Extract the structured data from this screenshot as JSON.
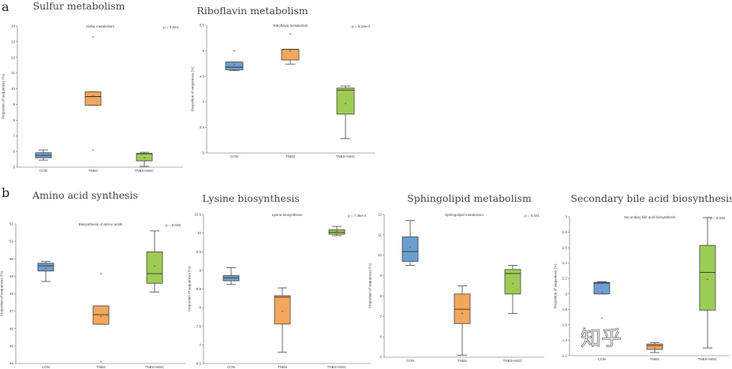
{
  "panel_labels": {
    "a": "a",
    "b": "b"
  },
  "watermark": "知乎",
  "colors": {
    "CON": "#6b9fcf",
    "TNBS": "#f2a75c",
    "TNBS+MSC": "#9dcc55"
  },
  "chart_data": [
    {
      "type": "box",
      "section": "a",
      "title": "Sulfur metabolism",
      "inner_title": "Sulfur metabolism",
      "pvalue": "p = 0.024",
      "ylabel": "Proportion of sequences (%)",
      "categories": [
        "CON",
        "TNBS",
        "TNBS+MSC"
      ],
      "ylim": [
        5,
        14
      ],
      "yticks": [
        5,
        6,
        7,
        8,
        9,
        10,
        11,
        12,
        13,
        14
      ],
      "boxes": [
        {
          "low": 5.45,
          "q1": 5.6,
          "median": 5.75,
          "q3": 5.92,
          "high": 6.1,
          "mean": 5.78,
          "outliers": []
        },
        {
          "low": 8.95,
          "q1": 8.95,
          "median": 9.5,
          "q3": 9.8,
          "high": 9.8,
          "mean": 9.55,
          "outliers": [
            13.3,
            6.1
          ]
        },
        {
          "low": 5.05,
          "q1": 5.4,
          "median": 5.85,
          "q3": 5.88,
          "high": 5.95,
          "mean": 5.6,
          "outliers": []
        }
      ]
    },
    {
      "type": "box",
      "section": "a",
      "title": "Riboflavin metabolism",
      "inner_title": "Riboflavin metabolism",
      "pvalue": "p = 5.23e-4",
      "ylabel": "Proportion of sequences (%)",
      "categories": [
        "CON",
        "TNBS",
        "TNBS+MSC"
      ],
      "ylim": [
        3.0,
        5.5
      ],
      "yticks": [
        3.0,
        3.5,
        4.0,
        4.5,
        5.0,
        5.5
      ],
      "boxes": [
        {
          "low": 4.61,
          "q1": 4.63,
          "median": 4.68,
          "q3": 4.78,
          "high": 4.78,
          "mean": 4.73,
          "outliers": [
            5.0
          ]
        },
        {
          "low": 4.74,
          "q1": 4.82,
          "median": 5.03,
          "q3": 5.03,
          "high": 5.03,
          "mean": 5.0,
          "outliers": [
            5.33
          ]
        },
        {
          "low": 3.28,
          "q1": 3.76,
          "median": 4.23,
          "q3": 4.27,
          "high": 4.31,
          "mean": 3.97,
          "outliers": []
        }
      ]
    },
    {
      "type": "box",
      "section": "b",
      "title": "Amino acid synthesis",
      "inner_title": "Biosynthesis of amino acids",
      "pvalue": "p = 0.035",
      "ylabel": "Proportion of sequences (%)",
      "categories": [
        "CON",
        "TNBS",
        "TNBS+MSC"
      ],
      "ylim": [
        44,
        52
      ],
      "yticks": [
        44,
        45,
        46,
        47,
        48,
        49,
        50,
        51,
        52
      ],
      "boxes": [
        {
          "low": 48.7,
          "q1": 49.3,
          "median": 49.6,
          "q3": 49.75,
          "high": 49.85,
          "mean": 49.45,
          "outliers": []
        },
        {
          "low": 46.25,
          "q1": 46.25,
          "median": 46.8,
          "q3": 47.3,
          "high": 47.3,
          "mean": 46.7,
          "outliers": [
            49.15,
            44.1
          ]
        },
        {
          "low": 48.1,
          "q1": 48.6,
          "median": 49.15,
          "q3": 50.4,
          "high": 51.6,
          "mean": 49.6,
          "outliers": []
        }
      ]
    },
    {
      "type": "box",
      "section": "b",
      "title": "Lysine biosynthesis",
      "inner_title": "Lysine biosynthesis",
      "pvalue": "p = 7.35e-4",
      "ylabel": "Proportion of sequences (%)",
      "categories": [
        "CON",
        "TNBS",
        "TNBS+MSC"
      ],
      "ylim": [
        6.5,
        10.5
      ],
      "yticks": [
        6.5,
        7.0,
        7.5,
        8.0,
        8.5,
        9.0,
        9.5,
        10.0,
        10.5
      ],
      "boxes": [
        {
          "low": 8.62,
          "q1": 8.72,
          "median": 8.8,
          "q3": 8.86,
          "high": 9.07,
          "mean": 8.8,
          "outliers": []
        },
        {
          "low": 6.8,
          "q1": 7.56,
          "median": 8.28,
          "q3": 8.32,
          "high": 8.53,
          "mean": 7.9,
          "outliers": []
        },
        {
          "low": 9.93,
          "q1": 9.97,
          "median": 10.02,
          "q3": 10.09,
          "high": 10.18,
          "mean": 10.04,
          "outliers": []
        }
      ]
    },
    {
      "type": "box",
      "section": "b",
      "title": "Sphingolipid metabolism",
      "inner_title": "Sphingolipid metabolism",
      "pvalue": "p = 0.031",
      "ylabel": "Proportion of sequences (%)",
      "categories": [
        "CON",
        "TNBS",
        "TNBS+MSC"
      ],
      "ylim": [
        5,
        12
      ],
      "yticks": [
        5,
        6,
        7,
        8,
        9,
        10,
        11,
        12
      ],
      "boxes": [
        {
          "low": 9.5,
          "q1": 9.7,
          "median": 10.18,
          "q3": 10.9,
          "high": 11.7,
          "mean": 10.4,
          "outliers": []
        },
        {
          "low": 5.1,
          "q1": 6.65,
          "median": 7.35,
          "q3": 8.1,
          "high": 8.5,
          "mean": 7.15,
          "outliers": []
        },
        {
          "low": 7.15,
          "q1": 8.1,
          "median": 9.1,
          "q3": 9.3,
          "high": 9.5,
          "mean": 8.6,
          "outliers": []
        }
      ]
    },
    {
      "type": "box",
      "section": "b",
      "title": "Secondary bile acid biosynthesis",
      "inner_title": "Secondary bile acid biosynthesis",
      "pvalue": "p = 0.046",
      "ylabel": "Proportion of sequences (%)",
      "categories": [
        "CON",
        "TNBS",
        "TNBS+MSC"
      ],
      "ylim": [
        1.2,
        3.0
      ],
      "yticks": [
        1.2,
        1.4,
        1.6,
        1.8,
        2.0,
        2.2,
        2.4,
        2.6,
        2.8,
        3.0
      ],
      "boxes": [
        {
          "low": 2.0,
          "q1": 2.0,
          "median": 2.14,
          "q3": 2.15,
          "high": 2.16,
          "mean": 2.02,
          "outliers": [
            1.69
          ]
        },
        {
          "low": 1.24,
          "q1": 1.28,
          "median": 1.33,
          "q3": 1.35,
          "high": 1.37,
          "mean": 1.3,
          "outliers": []
        },
        {
          "low": 1.3,
          "q1": 1.79,
          "median": 2.28,
          "q3": 2.63,
          "high": 2.99,
          "mean": 2.19,
          "outliers": []
        }
      ]
    }
  ]
}
